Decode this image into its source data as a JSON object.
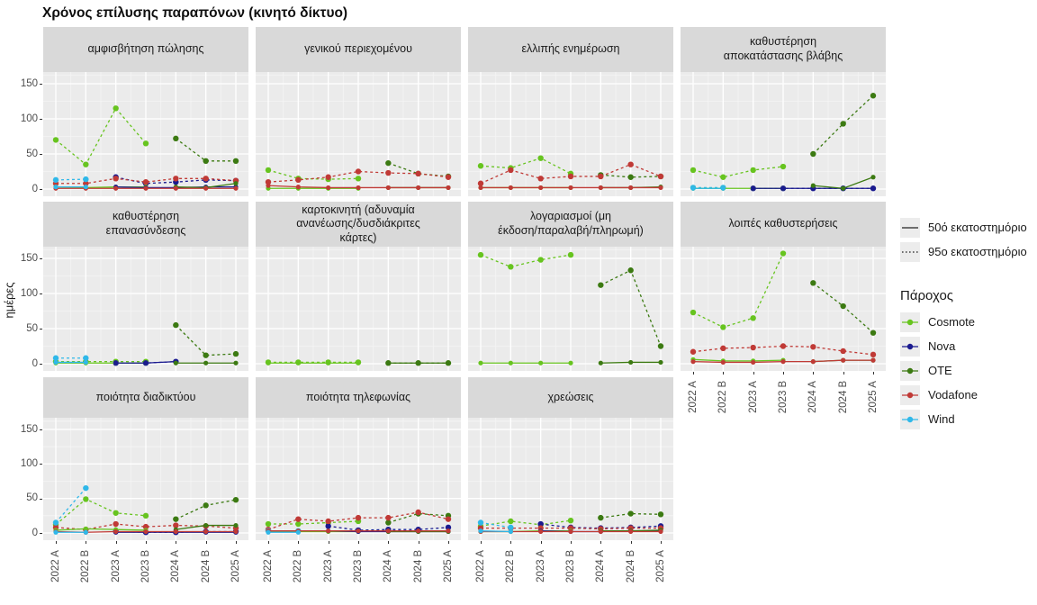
{
  "title": "Χρόνος επίλυσης παραπόνων (κινητό δίκτυο)",
  "colors": {
    "panel_bg": "#EBEBEB",
    "strip_bg": "#D9D9D9",
    "grid_major": "#FFFFFF",
    "grid_minor": "#F5F5F5",
    "tick_text": "#4D4D4D",
    "axis_tick": "#333333"
  },
  "chart_data": {
    "type": "line",
    "title": "Χρόνος επίλυσης παραπόνων (κινητό δίκτυο)",
    "xlabel": "",
    "ylabel": "ημέρες",
    "x_categories": [
      "2022 A",
      "2022 B",
      "2023 A",
      "2023 B",
      "2024 A",
      "2024 B",
      "2025 A"
    ],
    "yticks": [
      0,
      50,
      100,
      150
    ],
    "ylim": [
      0,
      165
    ],
    "grid": true,
    "legend_position": "right",
    "percentile_legend": [
      {
        "label": "50ό εκατοστημόριο",
        "style": "solid"
      },
      {
        "label": "95ο εκατοστημόριο",
        "style": "dotted"
      }
    ],
    "legend_title": "Πάροχος",
    "providers": [
      {
        "name": "Cosmote",
        "color": "#67C41F"
      },
      {
        "name": "Nova",
        "color": "#1A1A8F"
      },
      {
        "name": "OTE",
        "color": "#3C7A12"
      },
      {
        "name": "Vodafone",
        "color": "#C03A36"
      },
      {
        "name": "Wind",
        "color": "#2FB8E9"
      }
    ],
    "facets": [
      {
        "title": "αμφισβήτηση πώλησης",
        "series": [
          {
            "provider": "Cosmote",
            "p50": [
              3,
              2,
              3,
              3,
              null,
              null,
              null
            ],
            "p95": [
              70,
              35,
              115,
              65,
              null,
              null,
              null
            ]
          },
          {
            "provider": "Nova",
            "p50": [
              null,
              null,
              3,
              2,
              2,
              3,
              3
            ],
            "p95": [
              null,
              null,
              17,
              8,
              10,
              13,
              12
            ]
          },
          {
            "provider": "OTE",
            "p50": [
              null,
              null,
              null,
              null,
              3,
              2,
              8
            ],
            "p95": [
              null,
              null,
              null,
              null,
              72,
              40,
              40
            ]
          },
          {
            "provider": "Vodafone",
            "p50": [
              1,
              1,
              1,
              1,
              1,
              1,
              1
            ],
            "p95": [
              8,
              8,
              15,
              10,
              15,
              15,
              12
            ]
          },
          {
            "provider": "Wind",
            "p50": [
              3,
              3,
              null,
              null,
              null,
              null,
              null
            ],
            "p95": [
              13,
              14,
              null,
              null,
              null,
              null,
              null
            ]
          }
        ]
      },
      {
        "title": "γενικού περιεχομένου",
        "series": [
          {
            "provider": "Cosmote",
            "p50": [
              1,
              1,
              1,
              1,
              null,
              null,
              null
            ],
            "p95": [
              27,
              15,
              14,
              15,
              null,
              null,
              null
            ]
          },
          {
            "provider": "OTE",
            "p50": [
              null,
              null,
              null,
              null,
              2,
              2,
              2
            ],
            "p95": [
              null,
              null,
              null,
              null,
              37,
              22,
              18
            ]
          },
          {
            "provider": "Vodafone",
            "p50": [
              5,
              3,
              2,
              2,
              2,
              2,
              2
            ],
            "p95": [
              10,
              13,
              17,
              25,
              23,
              22,
              17
            ]
          }
        ]
      },
      {
        "title": "ελλιπής ενημέρωση",
        "series": [
          {
            "provider": "Cosmote",
            "p50": [
              2,
              2,
              2,
              2,
              null,
              null,
              null
            ],
            "p95": [
              33,
              30,
              44,
              22,
              null,
              null,
              null
            ]
          },
          {
            "provider": "OTE",
            "p50": [
              null,
              null,
              null,
              null,
              2,
              2,
              3
            ],
            "p95": [
              null,
              null,
              null,
              null,
              20,
              17,
              18
            ]
          },
          {
            "provider": "Vodafone",
            "p50": [
              2,
              2,
              2,
              2,
              2,
              2,
              2
            ],
            "p95": [
              8,
              27,
              15,
              18,
              18,
              35,
              18
            ]
          }
        ]
      },
      {
        "title": "καθυστέρηση\nαποκατάστασης βλάβης",
        "series": [
          {
            "provider": "Cosmote",
            "p50": [
              1,
              1,
              1,
              1,
              null,
              null,
              null
            ],
            "p95": [
              27,
              17,
              27,
              32,
              null,
              null,
              null
            ]
          },
          {
            "provider": "Nova",
            "p50": [
              null,
              null,
              1,
              1,
              1,
              1,
              1
            ],
            "p95": [
              null,
              null,
              1,
              1,
              1,
              1,
              1
            ]
          },
          {
            "provider": "OTE",
            "p50": [
              null,
              null,
              null,
              null,
              5,
              1,
              17
            ],
            "p95": [
              null,
              null,
              null,
              null,
              50,
              93,
              133
            ]
          },
          {
            "provider": "Wind",
            "p50": [
              1,
              1,
              null,
              null,
              null,
              null,
              null
            ],
            "p95": [
              2,
              2,
              null,
              null,
              null,
              null,
              null
            ]
          }
        ]
      },
      {
        "title": "καθυστέρηση\nεπανασύνδεσης",
        "series": [
          {
            "provider": "Cosmote",
            "p50": [
              1,
              1,
              1,
              1,
              null,
              null,
              null
            ],
            "p95": [
              3,
              3,
              3,
              3,
              null,
              null,
              null
            ]
          },
          {
            "provider": "Nova",
            "p50": [
              null,
              null,
              1,
              1,
              3,
              null,
              null
            ],
            "p95": [
              null,
              null,
              1,
              1,
              3,
              null,
              null
            ]
          },
          {
            "provider": "OTE",
            "p50": [
              null,
              null,
              null,
              null,
              1,
              1,
              1
            ],
            "p95": [
              null,
              null,
              null,
              null,
              55,
              12,
              14
            ]
          },
          {
            "provider": "Wind",
            "p50": [
              2,
              2,
              null,
              null,
              null,
              null,
              null
            ],
            "p95": [
              8,
              8,
              null,
              null,
              null,
              null,
              null
            ]
          }
        ]
      },
      {
        "title": "καρτοκινητή (αδυναμία\nανανέωσης/δυσδιάκριτες\nκάρτες)",
        "series": [
          {
            "provider": "Cosmote",
            "p50": [
              1,
              1,
              1,
              1,
              null,
              null,
              null
            ],
            "p95": [
              2,
              2,
              2,
              2,
              null,
              null,
              null
            ]
          },
          {
            "provider": "OTE",
            "p50": [
              null,
              null,
              null,
              null,
              1,
              1,
              1
            ],
            "p95": [
              null,
              null,
              null,
              null,
              1,
              1,
              1
            ]
          }
        ]
      },
      {
        "title": "λογαριασμοί (μη\nέκδοση/παραλαβή/πληρωμή)",
        "series": [
          {
            "provider": "Cosmote",
            "p50": [
              1,
              1,
              1,
              1,
              null,
              null,
              null
            ],
            "p95": [
              155,
              138,
              148,
              155,
              null,
              null,
              null
            ]
          },
          {
            "provider": "OTE",
            "p50": [
              null,
              null,
              null,
              null,
              1,
              2,
              2
            ],
            "p95": [
              null,
              null,
              null,
              null,
              112,
              133,
              25
            ]
          }
        ]
      },
      {
        "title": "λοιπές καθυστερήσεις",
        "series": [
          {
            "provider": "Cosmote",
            "p50": [
              6,
              4,
              4,
              5,
              null,
              null,
              null
            ],
            "p95": [
              73,
              52,
              65,
              157,
              null,
              null,
              null
            ]
          },
          {
            "provider": "OTE",
            "p50": [
              null,
              null,
              null,
              null,
              3,
              5,
              5
            ],
            "p95": [
              null,
              null,
              null,
              null,
              115,
              82,
              44
            ]
          },
          {
            "provider": "Vodafone",
            "p50": [
              3,
              2,
              2,
              3,
              3,
              5,
              5
            ],
            "p95": [
              17,
              22,
              23,
              25,
              24,
              18,
              13
            ]
          }
        ]
      },
      {
        "title": "ποιότητα διαδικτύου",
        "series": [
          {
            "provider": "Cosmote",
            "p50": [
              4,
              6,
              5,
              4,
              null,
              null,
              null
            ],
            "p95": [
              12,
              49,
              29,
              25,
              null,
              null,
              null
            ]
          },
          {
            "provider": "Nova",
            "p50": [
              null,
              null,
              1,
              1,
              1,
              1,
              1
            ],
            "p95": [
              null,
              null,
              2,
              1,
              1,
              2,
              2
            ]
          },
          {
            "provider": "OTE",
            "p50": [
              null,
              null,
              null,
              null,
              5,
              11,
              11
            ],
            "p95": [
              null,
              null,
              null,
              null,
              20,
              40,
              48
            ]
          },
          {
            "provider": "Vodafone",
            "p50": [
              2,
              1,
              2,
              2,
              2,
              2,
              2
            ],
            "p95": [
              8,
              5,
              13,
              9,
              11,
              10,
              7
            ]
          },
          {
            "provider": "Wind",
            "p50": [
              1,
              1,
              null,
              null,
              null,
              null,
              null
            ],
            "p95": [
              15,
              65,
              null,
              null,
              null,
              null,
              null
            ]
          }
        ]
      },
      {
        "title": "ποιότητα τηλεφωνίας",
        "series": [
          {
            "provider": "Cosmote",
            "p50": [
              2,
              2,
              2,
              2,
              null,
              null,
              null
            ],
            "p95": [
              13,
              13,
              15,
              17,
              null,
              null,
              null
            ]
          },
          {
            "provider": "Nova",
            "p50": [
              null,
              null,
              3,
              2,
              2,
              2,
              2
            ],
            "p95": [
              null,
              null,
              10,
              4,
              5,
              5,
              8
            ]
          },
          {
            "provider": "OTE",
            "p50": [
              null,
              null,
              null,
              null,
              2,
              2,
              2
            ],
            "p95": [
              null,
              null,
              null,
              null,
              15,
              28,
              25
            ]
          },
          {
            "provider": "Vodafone",
            "p50": [
              3,
              3,
              3,
              3,
              3,
              3,
              3
            ],
            "p95": [
              5,
              20,
              17,
              22,
              22,
              30,
              20
            ]
          },
          {
            "provider": "Wind",
            "p50": [
              1,
              1,
              null,
              null,
              null,
              null,
              null
            ],
            "p95": [
              3,
              3,
              null,
              null,
              null,
              null,
              null
            ]
          }
        ]
      },
      {
        "title": "χρεώσεις",
        "series": [
          {
            "provider": "Cosmote",
            "p50": [
              2,
              2,
              3,
              3,
              null,
              null,
              null
            ],
            "p95": [
              10,
              17,
              12,
              18,
              null,
              null,
              null
            ]
          },
          {
            "provider": "Nova",
            "p50": [
              null,
              null,
              3,
              2,
              2,
              3,
              3
            ],
            "p95": [
              null,
              null,
              13,
              8,
              7,
              8,
              10
            ]
          },
          {
            "provider": "OTE",
            "p50": [
              null,
              null,
              null,
              null,
              3,
              3,
              4
            ],
            "p95": [
              null,
              null,
              null,
              null,
              22,
              28,
              27
            ]
          },
          {
            "provider": "Vodafone",
            "p50": [
              2,
              2,
              2,
              2,
              2,
              2,
              2
            ],
            "p95": [
              7,
              7,
              7,
              7,
              6,
              7,
              7
            ]
          },
          {
            "provider": "Wind",
            "p50": [
              3,
              2,
              null,
              null,
              null,
              null,
              null
            ],
            "p95": [
              15,
              8,
              null,
              null,
              null,
              null,
              null
            ]
          }
        ]
      }
    ]
  }
}
